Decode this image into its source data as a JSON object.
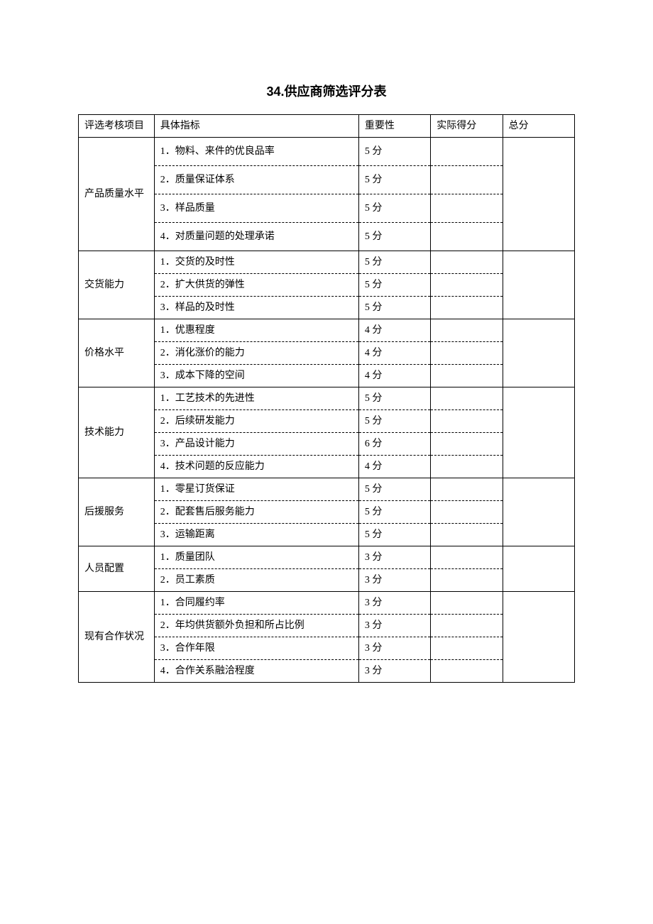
{
  "title": "34.供应商筛选评分表",
  "headers": {
    "category": "评选考核项目",
    "indicator": "具体指标",
    "importance": "重要性",
    "actualScore": "实际得分",
    "total": "总分"
  },
  "sections": [
    {
      "category": "产品质量水平",
      "tall": true,
      "rows": [
        {
          "indicator": "1．物料、来件的优良品率",
          "importance": "5 分"
        },
        {
          "indicator": "2．质量保证体系",
          "importance": "5 分"
        },
        {
          "indicator": "3．样品质量",
          "importance": "5 分"
        },
        {
          "indicator": "4．对质量问题的处理承诺",
          "importance": "5 分"
        }
      ]
    },
    {
      "category": "交货能力",
      "tall": false,
      "rows": [
        {
          "indicator": "1．交货的及时性",
          "importance": "5 分"
        },
        {
          "indicator": "2．扩大供货的弹性",
          "importance": "5 分"
        },
        {
          "indicator": "3．样品的及时性",
          "importance": "5 分"
        }
      ]
    },
    {
      "category": "价格水平",
      "tall": false,
      "rows": [
        {
          "indicator": "1．优惠程度",
          "importance": "4 分"
        },
        {
          "indicator": "2．消化涨价的能力",
          "importance": "4 分"
        },
        {
          "indicator": "3．成本下降的空间",
          "importance": "4 分"
        }
      ]
    },
    {
      "category": "技术能力",
      "tall": false,
      "rows": [
        {
          "indicator": "1．工艺技术的先进性",
          "importance": "5 分"
        },
        {
          "indicator": "2．后续研发能力",
          "importance": "5 分"
        },
        {
          "indicator": "3．产品设计能力",
          "importance": "6 分"
        },
        {
          "indicator": "4．技术问题的反应能力",
          "importance": "4 分"
        }
      ]
    },
    {
      "category": "后援服务",
      "tall": false,
      "rows": [
        {
          "indicator": "1．零星订货保证",
          "importance": "5 分"
        },
        {
          "indicator": "2．配套售后服务能力",
          "importance": "5 分"
        },
        {
          "indicator": "3．运输距离",
          "importance": "5 分"
        }
      ]
    },
    {
      "category": "人员配置",
      "tall": false,
      "rows": [
        {
          "indicator": "1．质量团队",
          "importance": "3 分"
        },
        {
          "indicator": "2．员工素质",
          "importance": "3 分"
        }
      ]
    },
    {
      "category": "现有合作状况",
      "tall": false,
      "rows": [
        {
          "indicator": "1．合同履约率",
          "importance": "3 分"
        },
        {
          "indicator": "2．年均供货额外负担和所占比例",
          "importance": "3 分"
        },
        {
          "indicator": "3．合作年限",
          "importance": "3 分"
        },
        {
          "indicator": "4．合作关系融洽程度",
          "importance": "3 分"
        }
      ]
    }
  ]
}
